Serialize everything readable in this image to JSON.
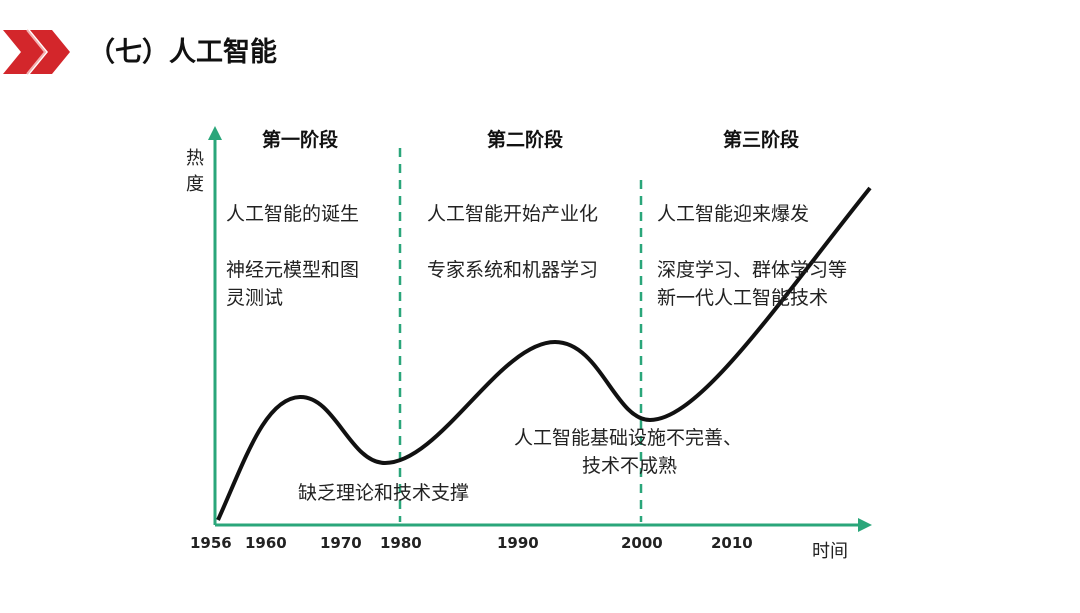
{
  "title": "（七）人工智能",
  "colors": {
    "accent": "#d3262b",
    "axis": "#2aa67a",
    "curve": "#111111"
  },
  "axes": {
    "y_label": "热度",
    "x_label": "时间",
    "x_ticks": [
      "1956",
      "1960",
      "1970",
      "1980",
      "1990",
      "2000",
      "2010"
    ]
  },
  "stages": [
    {
      "name": "第一阶段",
      "headline": "人工智能的诞生",
      "detail_lines": [
        "神经元模型和图",
        "灵测试"
      ]
    },
    {
      "name": "第二阶段",
      "headline": "人工智能开始产业化",
      "detail_lines": [
        "专家系统和机器学习"
      ]
    },
    {
      "name": "第三阶段",
      "headline": "人工智能迎来爆发",
      "detail_lines": [
        "深度学习、群体学习等",
        "新一代人工智能技术"
      ]
    }
  ],
  "annotations": {
    "trough1": "缺乏理论和技术支撑",
    "trough2_lines": [
      "人工智能基础设施不完善、",
      "技术不成熟"
    ]
  }
}
